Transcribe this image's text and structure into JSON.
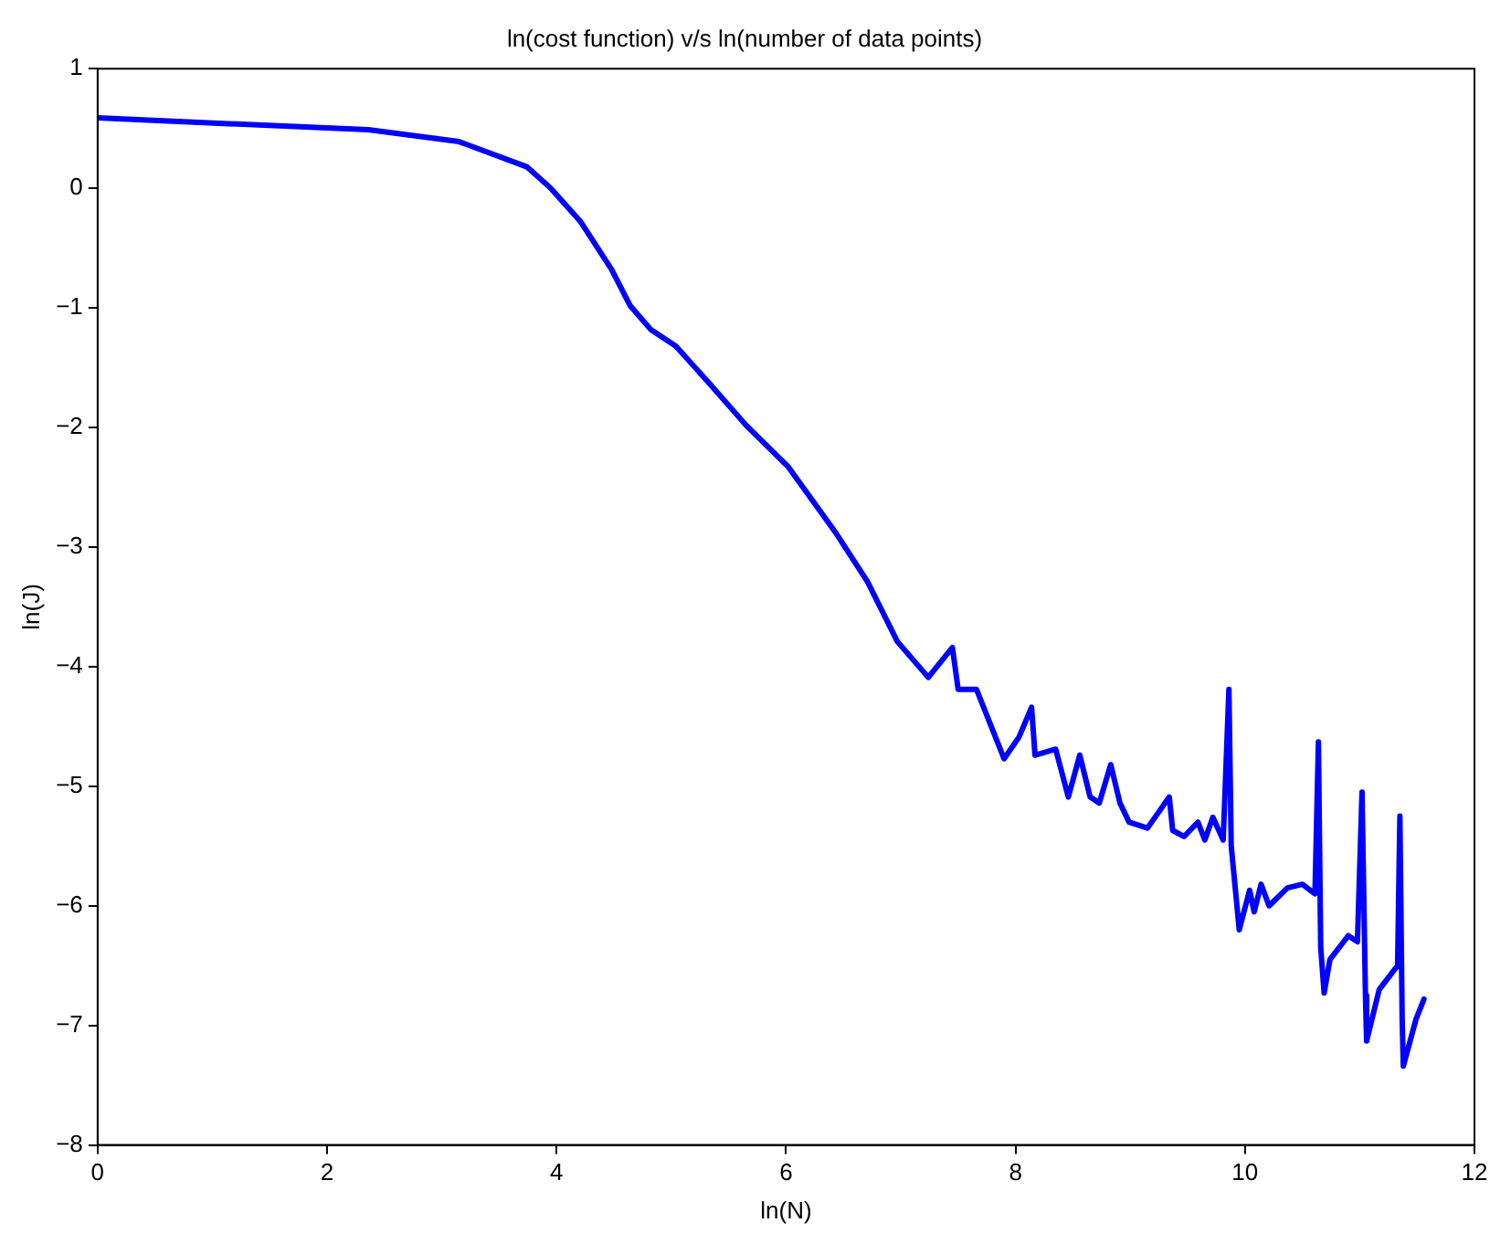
{
  "chart_data": {
    "type": "line",
    "title": "ln(cost function) v/s ln(number of data points)",
    "xlabel": "ln(N)",
    "ylabel": "ln(J)",
    "xlim": [
      0,
      12
    ],
    "xticks": [
      0,
      2,
      4,
      6,
      8,
      10,
      12
    ],
    "ylim": [
      -8,
      1
    ],
    "yticks": [
      -8,
      -7,
      -6,
      -5,
      -4,
      -3,
      -2,
      -1,
      0,
      1
    ],
    "grid": false,
    "legend": false,
    "marker": "none",
    "line_style": "solid",
    "series": [
      {
        "color": "#0000ff",
        "x": [
          0,
          0.66,
          2.36,
          3.15,
          3.74,
          3.95,
          4.21,
          4.48,
          4.64,
          4.82,
          5.04,
          5.33,
          5.65,
          6.02,
          6.44,
          6.71,
          6.97,
          7.24,
          7.45,
          7.5,
          7.66,
          7.9,
          8.03,
          8.14,
          8.17,
          8.35,
          8.46,
          8.56,
          8.65,
          8.73,
          8.83,
          8.91,
          8.99,
          9.15,
          9.34,
          9.37,
          9.47,
          9.59,
          9.65,
          9.72,
          9.81,
          9.86,
          9.88,
          9.95,
          10.04,
          10.08,
          10.14,
          10.21,
          10.37,
          10.5,
          10.61,
          10.64,
          10.66,
          10.69,
          10.74,
          10.9,
          10.98,
          11.02,
          11.05,
          11.06,
          11.17,
          11.33,
          11.35,
          11.37,
          11.38,
          11.49,
          11.56
        ],
        "values": [
          0.59,
          0.56,
          0.49,
          0.39,
          0.18,
          0,
          -0.28,
          -0.68,
          -0.98,
          -1.18,
          -1.32,
          -1.63,
          -1.98,
          -2.33,
          -2.89,
          -3.29,
          -3.79,
          -4.09,
          -3.84,
          -4.19,
          -4.19,
          -4.77,
          -4.59,
          -4.34,
          -4.74,
          -4.69,
          -5.09,
          -4.74,
          -5.09,
          -5.14,
          -4.82,
          -5.14,
          -5.3,
          -5.35,
          -5.09,
          -5.37,
          -5.42,
          -5.3,
          -5.45,
          -5.26,
          -5.45,
          -4.19,
          -5.5,
          -6.2,
          -5.87,
          -6.05,
          -5.82,
          -6,
          -5.85,
          -5.82,
          -5.9,
          -4.63,
          -6.35,
          -6.73,
          -6.45,
          -6.25,
          -6.3,
          -5.05,
          -6.75,
          -7.13,
          -6.7,
          -6.5,
          -5.25,
          -6.95,
          -7.34,
          -6.95,
          -6.78
        ]
      }
    ]
  }
}
